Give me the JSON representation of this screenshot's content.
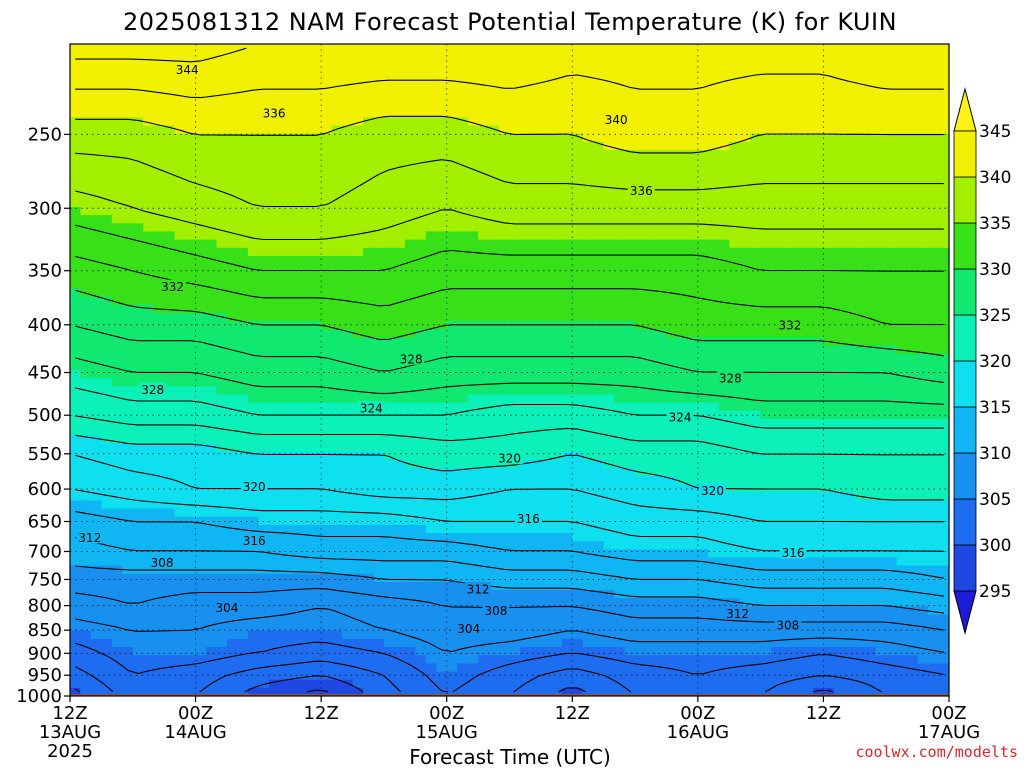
{
  "title": "2025081312 NAM Forecast Potential Temperature (K) for KUIN",
  "credit": "coolwx.com/modelts",
  "chart_data": {
    "type": "heatmap",
    "title": "2025081312 NAM Forecast Potential Temperature (K) for KUIN",
    "xlabel": "Forecast Time (UTC)",
    "ylabel": "",
    "x_ticks": [
      {
        "h": 0,
        "label": [
          "12Z",
          "13AUG",
          "2025"
        ]
      },
      {
        "h": 12,
        "label": [
          "00Z",
          "14AUG"
        ]
      },
      {
        "h": 24,
        "label": [
          "12Z"
        ]
      },
      {
        "h": 36,
        "label": [
          "00Z",
          "15AUG"
        ]
      },
      {
        "h": 48,
        "label": [
          "12Z"
        ]
      },
      {
        "h": 60,
        "label": [
          "00Z",
          "16AUG"
        ]
      },
      {
        "h": 72,
        "label": [
          "12Z"
        ]
      },
      {
        "h": 84,
        "label": [
          "00Z",
          "17AUG"
        ]
      }
    ],
    "xlim": [
      0,
      84
    ],
    "y_ticks": [
      250,
      300,
      350,
      400,
      450,
      500,
      550,
      600,
      650,
      700,
      750,
      800,
      850,
      900,
      950,
      1000
    ],
    "ylim": [
      200,
      1000
    ],
    "y_scale": "log-pressure",
    "grid": true,
    "surface_pressure": 995,
    "colorbar": {
      "levels": [
        295,
        300,
        305,
        310,
        315,
        320,
        325,
        330,
        335,
        340,
        345
      ],
      "colors": [
        "#1c1cd8",
        "#1f48e2",
        "#1e6cef",
        "#1890ef",
        "#10b6f4",
        "#0ee0f0",
        "#0cf0ba",
        "#10e870",
        "#38e018",
        "#a2f000",
        "#f0f000",
        "#fff21a"
      ],
      "extend": "both"
    },
    "series": [
      {
        "pressure": 1000,
        "values": [
          299,
          303,
          302,
          299,
          297,
          301,
          304,
          302,
          299,
          302,
          304,
          302,
          299,
          302,
          303,
          302
        ]
      },
      {
        "pressure": 950,
        "values": [
          301,
          304,
          303,
          301,
          300,
          302,
          305,
          303,
          301,
          303,
          304,
          303,
          302,
          303,
          304,
          303
        ]
      },
      {
        "pressure": 900,
        "values": [
          303,
          305,
          305,
          304,
          303,
          304,
          306,
          305,
          304,
          305,
          305,
          305,
          304,
          305,
          306,
          305
        ]
      },
      {
        "pressure": 850,
        "values": [
          305,
          306,
          306,
          305,
          305,
          306,
          307,
          307,
          306,
          307,
          307,
          307,
          307,
          307,
          308,
          308
        ]
      },
      {
        "pressure": 800,
        "values": [
          307,
          308,
          307,
          307,
          306,
          307,
          308,
          308,
          308,
          309,
          309,
          310,
          310,
          310,
          311,
          311
        ]
      },
      {
        "pressure": 750,
        "values": [
          309,
          309,
          309,
          309,
          309,
          310,
          310,
          311,
          311,
          312,
          312,
          313,
          313,
          313,
          314,
          314
        ]
      },
      {
        "pressure": 700,
        "values": [
          311,
          312,
          312,
          312,
          313,
          313,
          313,
          314,
          314,
          315,
          315,
          316,
          316,
          316,
          316,
          316
        ]
      },
      {
        "pressure": 650,
        "values": [
          313,
          314,
          314,
          315,
          315,
          315,
          316,
          316,
          316,
          317,
          317,
          318,
          318,
          318,
          318,
          318
        ]
      },
      {
        "pressure": 600,
        "values": [
          316,
          317,
          318,
          318,
          318,
          319,
          319,
          318,
          318,
          319,
          320,
          320,
          320,
          321,
          321,
          321
        ]
      },
      {
        "pressure": 550,
        "values": [
          318,
          319,
          319,
          320,
          320,
          320,
          321,
          321,
          320,
          321,
          321,
          322,
          322,
          322,
          322,
          322
        ]
      },
      {
        "pressure": 500,
        "values": [
          322,
          323,
          323,
          324,
          324,
          324,
          324,
          323,
          323,
          324,
          324,
          325,
          325,
          325,
          325,
          325
        ]
      },
      {
        "pressure": 450,
        "values": [
          325,
          326,
          326,
          327,
          327,
          328,
          327,
          327,
          327,
          327,
          328,
          328,
          328,
          328,
          329,
          329
        ]
      },
      {
        "pressure": 400,
        "values": [
          328,
          329,
          329,
          330,
          330,
          331,
          330,
          330,
          330,
          330,
          331,
          331,
          331,
          332,
          332,
          332
        ]
      },
      {
        "pressure": 350,
        "values": [
          331,
          332,
          333,
          334,
          334,
          334,
          333,
          333,
          333,
          333,
          333,
          334,
          334,
          334,
          334,
          334
        ]
      },
      {
        "pressure": 300,
        "values": [
          335,
          336,
          337,
          338,
          338,
          337,
          336,
          337,
          337,
          337,
          337,
          337,
          337,
          337,
          337,
          337
        ]
      },
      {
        "pressure": 250,
        "values": [
          339,
          339,
          340,
          340,
          340,
          339,
          339,
          340,
          340,
          341,
          341,
          340,
          340,
          340,
          340,
          340
        ]
      },
      {
        "pressure": 200,
        "values": [
          345,
          345,
          345,
          344,
          344,
          344,
          344,
          344,
          343,
          343,
          343,
          343,
          343,
          344,
          344,
          345
        ]
      }
    ],
    "series_times": [
      0,
      6,
      12,
      18,
      24,
      30,
      36,
      42,
      48,
      54,
      60,
      66,
      72,
      78,
      84,
      84
    ],
    "contour_labels": [
      {
        "text": "344",
        "h": 11.2,
        "p": 213
      },
      {
        "text": "336",
        "h": 19.5,
        "p": 237
      },
      {
        "text": "340",
        "h": 52.2,
        "p": 241
      },
      {
        "text": "336",
        "h": 54.6,
        "p": 287
      },
      {
        "text": "332",
        "h": 9.8,
        "p": 364
      },
      {
        "text": "332",
        "h": 68.8,
        "p": 400
      },
      {
        "text": "328",
        "h": 32.6,
        "p": 435
      },
      {
        "text": "328",
        "h": 7.9,
        "p": 469
      },
      {
        "text": "328",
        "h": 63.1,
        "p": 456
      },
      {
        "text": "324",
        "h": 28.8,
        "p": 491
      },
      {
        "text": "324",
        "h": 58.3,
        "p": 502
      },
      {
        "text": "320",
        "h": 42.0,
        "p": 556
      },
      {
        "text": "320",
        "h": 17.6,
        "p": 596
      },
      {
        "text": "320",
        "h": 61.4,
        "p": 602
      },
      {
        "text": "316",
        "h": 43.8,
        "p": 645
      },
      {
        "text": "316",
        "h": 17.6,
        "p": 681
      },
      {
        "text": "316",
        "h": 69.1,
        "p": 702
      },
      {
        "text": "312",
        "h": 1.9,
        "p": 676
      },
      {
        "text": "312",
        "h": 39.0,
        "p": 768
      },
      {
        "text": "312",
        "h": 63.8,
        "p": 816
      },
      {
        "text": "308",
        "h": 8.8,
        "p": 719
      },
      {
        "text": "308",
        "h": 40.7,
        "p": 810
      },
      {
        "text": "308",
        "h": 68.6,
        "p": 839
      },
      {
        "text": "304",
        "h": 15.0,
        "p": 804
      },
      {
        "text": "304",
        "h": 38.1,
        "p": 846
      }
    ]
  }
}
